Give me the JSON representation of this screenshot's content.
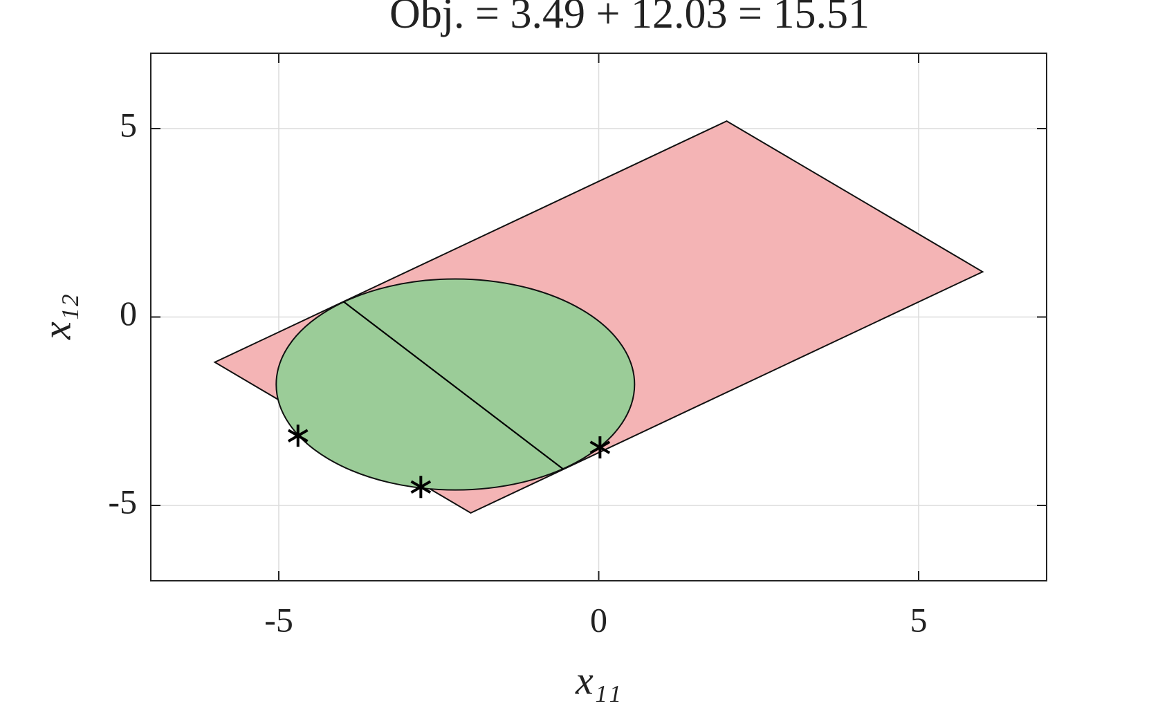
{
  "chart_data": {
    "type": "scatter",
    "title": "Obj. = 3.49 + 12.03 = 15.51",
    "xlabel": "x₁₁",
    "ylabel": "x₁₂",
    "xlim": [
      -7,
      7
    ],
    "ylim": [
      -7,
      7
    ],
    "xticks": [
      -5,
      0,
      5
    ],
    "yticks": [
      -5,
      0,
      5
    ],
    "grid": true,
    "polygon": {
      "x": [
        -6,
        2,
        6,
        -2
      ],
      "y": [
        -1.2,
        5.2,
        1.2,
        -5.2
      ],
      "color": "#f4b4b5"
    },
    "circle": {
      "cx": -2.24,
      "cy": -1.79,
      "r": 2.8,
      "color": "#9bcc98"
    },
    "segment": {
      "x": [
        -3.99,
        -0.56
      ],
      "y": [
        0.41,
        -4.03
      ],
      "color": "#000000"
    },
    "points": {
      "x": [
        -4.7,
        -2.78,
        0.02
      ],
      "y": [
        -3.15,
        -4.51,
        -3.46
      ],
      "color": "#000000"
    }
  }
}
